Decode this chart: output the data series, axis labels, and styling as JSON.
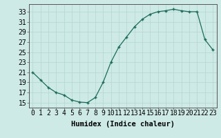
{
  "x": [
    0,
    1,
    2,
    3,
    4,
    5,
    6,
    7,
    8,
    9,
    10,
    11,
    12,
    13,
    14,
    15,
    16,
    17,
    18,
    19,
    20,
    21,
    22,
    23
  ],
  "y": [
    21.0,
    19.5,
    18.0,
    17.0,
    16.5,
    15.5,
    15.1,
    15.0,
    16.0,
    19.0,
    23.0,
    26.0,
    28.0,
    30.0,
    31.5,
    32.5,
    33.0,
    33.2,
    33.5,
    33.2,
    33.0,
    33.0,
    27.5,
    25.5
  ],
  "line_color": "#1a6b5a",
  "marker_color": "#1a6b5a",
  "bg_color": "#ceeae6",
  "grid_color": "#b8d8d4",
  "xlabel": "Humidex (Indice chaleur)",
  "ylabel_ticks": [
    15,
    17,
    19,
    21,
    23,
    25,
    27,
    29,
    31,
    33
  ],
  "xlim": [
    -0.5,
    23.5
  ],
  "ylim": [
    14.0,
    34.5
  ],
  "xlabel_fontsize": 7.5,
  "tick_fontsize": 7
}
